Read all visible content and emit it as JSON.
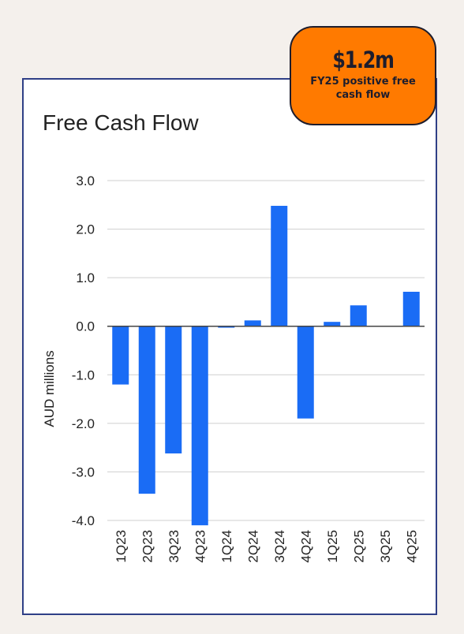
{
  "badge": {
    "value": "$1.2m",
    "caption": "FY25 positive free cash flow"
  },
  "colors": {
    "background": "#f4f0ec",
    "card_border": "#2f3f86",
    "bar": "#1a6cf5",
    "badge": "#ff7a00"
  },
  "chart_data": {
    "type": "bar",
    "title": "Free Cash Flow",
    "xlabel": "",
    "ylabel": "AUD millions",
    "ylim": [
      -4.0,
      3.0
    ],
    "yticks": [
      3.0,
      2.0,
      1.0,
      0.0,
      -1.0,
      -2.0,
      -3.0,
      -4.0
    ],
    "ytick_labels": [
      "3.0",
      "2.0",
      "1.0",
      "0.0",
      "-1.0",
      "-2.0",
      "-3.0",
      "-4.0"
    ],
    "categories": [
      "1Q23",
      "2Q23",
      "3Q23",
      "4Q23",
      "1Q24",
      "2Q24",
      "3Q24",
      "4Q24",
      "1Q25",
      "2Q25",
      "3Q25",
      "4Q25"
    ],
    "values": [
      -1.2,
      -3.45,
      -2.62,
      -4.1,
      -0.03,
      0.12,
      2.48,
      -1.9,
      0.09,
      0.43,
      0.01,
      0.71
    ],
    "grid": true,
    "legend": "none"
  }
}
